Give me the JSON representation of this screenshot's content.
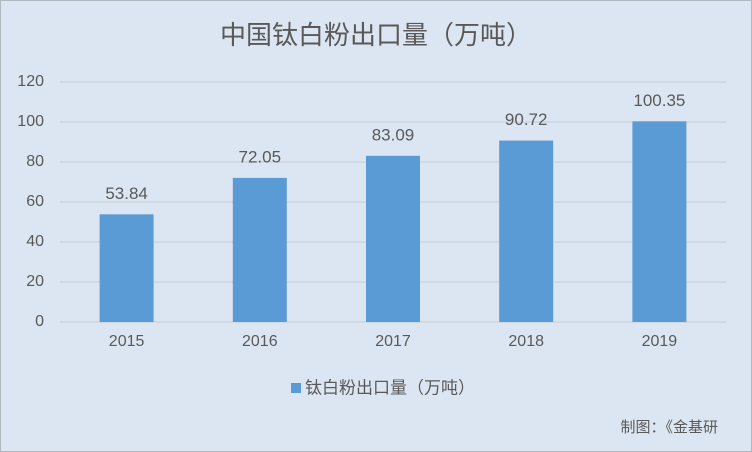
{
  "chart_data": {
    "type": "bar",
    "title": "中国钛白粉出口量（万吨）",
    "categories": [
      "2015",
      "2016",
      "2017",
      "2018",
      "2019"
    ],
    "series": [
      {
        "name": "钛白粉出口量（万吨）",
        "color": "#5b9bd5",
        "values": [
          53.84,
          72.05,
          83.09,
          90.72,
          100.35
        ]
      }
    ],
    "ylim": [
      0,
      120
    ],
    "yticks": [
      0,
      20,
      40,
      60,
      80,
      100,
      120
    ],
    "grid": true,
    "legend": "bottom",
    "source": "制图：《金基研"
  }
}
